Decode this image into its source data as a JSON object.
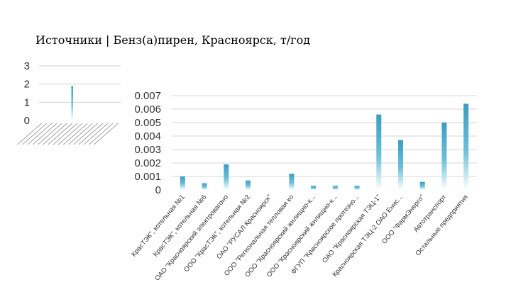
{
  "title": "Источники | Бенз(а)пирен, Красноярск, т/год",
  "chart_data": [
    {
      "type": "bar",
      "role": "overview",
      "ylim": [
        0,
        3
      ],
      "yticks": [
        0,
        1,
        2,
        3
      ],
      "grid": true,
      "values": [
        0.0001,
        0.0001,
        0.0001,
        0.0001,
        0.0001,
        0.0001,
        1.9,
        0.0001,
        0.0001,
        0.0001,
        0.0001,
        0.0001,
        0.0001,
        0.0001,
        0.0001,
        0.0001
      ]
    },
    {
      "type": "bar",
      "role": "detail",
      "ylim": [
        0,
        0.007
      ],
      "yticks": [
        0,
        0.001,
        0.002,
        0.003,
        0.004,
        0.005,
        0.006,
        0.007
      ],
      "ytick_labels": [
        "0",
        "0.001",
        "0.002",
        "0.003",
        "0.004",
        "0.005",
        "0.006",
        "0.007"
      ],
      "grid": true,
      "categories": [
        "КрасТЭК\", котельная №1",
        "КрасТЭК\", котельная №6",
        "ОАО \"Красноярский электровагонo",
        "ООО \"КрасТЭК\", котельная №2",
        "ОАО \"РУСАЛ Красноярск\"",
        "ООО \"Региональная тепловая ко",
        "ООО \"Красноярский жилищно-к...",
        "ООО \"Красноярский жилищно-к...",
        "ФГУП \"Красноярское протезно...",
        "ОАО \"Красноярская ТЭЦ-1\"",
        "Красноярская ТЭЦ-2 ОАО Енис...",
        "ООО \"ФармЭнерго\"",
        "Автотранспорт",
        "Остальные предприятия"
      ],
      "values": [
        0.001,
        0.0005,
        0.0019,
        0.0007,
        0,
        0.0012,
        0.0003,
        0.0003,
        0.0003,
        0.0056,
        0.0037,
        0.0006,
        0.005,
        0.0064
      ]
    }
  ]
}
